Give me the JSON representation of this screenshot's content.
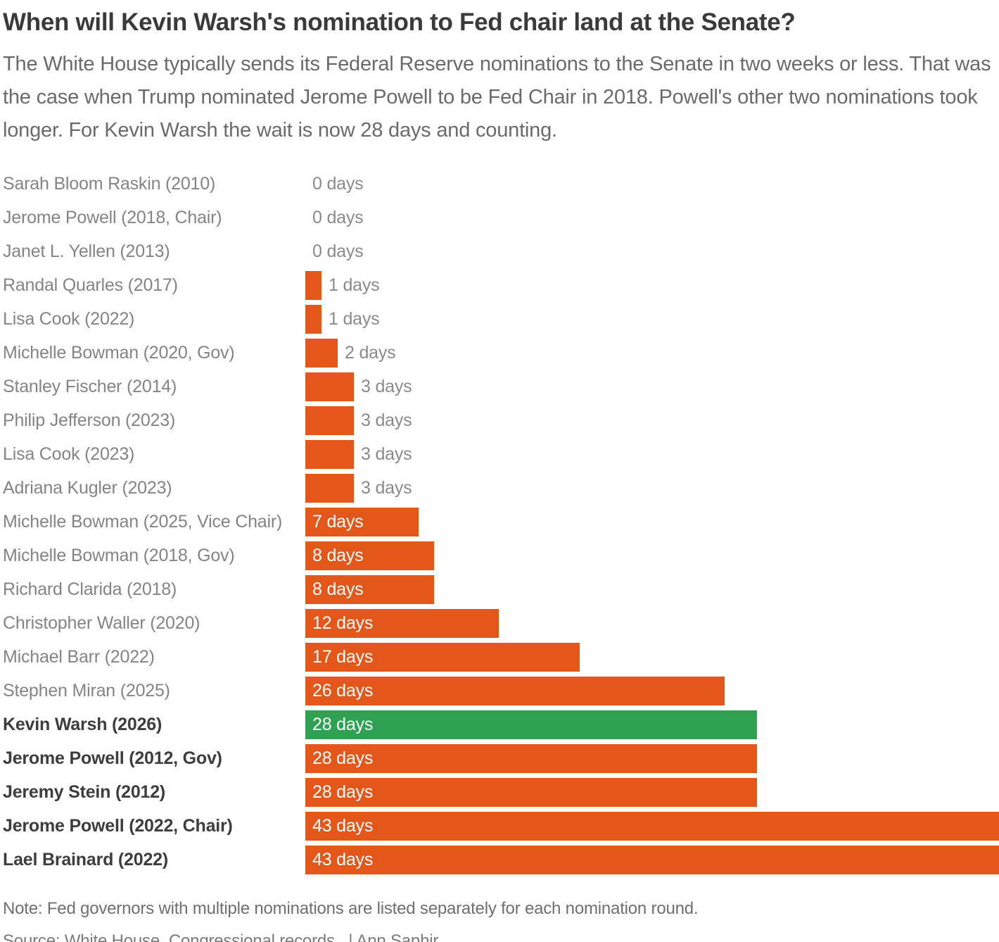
{
  "chart_data": {
    "type": "bar",
    "orientation": "horizontal",
    "title": "When will Kevin Warsh's nomination to Fed chair land at the Senate?",
    "subtitle": "The White House typically sends its Federal Reserve nominations to the Senate in two weeks or less. That was the case when Trump nominated Jerome Powell to be Fed Chair in 2018. Powell's other two nominations took longer. For Kevin Warsh the wait is now 28 days and counting.",
    "note": "Note: Fed governors with multiple nominations are listed separately for each nomination round.",
    "source": "Source: White House, Congressional records,  | Ann Saphir",
    "xlim": [
      0,
      43
    ],
    "value_suffix": " days",
    "inside_label_threshold": 7,
    "legend": "none",
    "grid": false,
    "colors": {
      "bar": "#e4571a",
      "highlight_bar": "#2fa153",
      "label": "#848484",
      "bold_label": "#3d3d3d",
      "value_outside": "#8a8a8a",
      "value_inside": "#ffffff"
    },
    "rows": [
      {
        "label": "Sarah Bloom Raskin (2010)",
        "value": 0,
        "bold": false,
        "highlight": false
      },
      {
        "label": "Jerome Powell (2018, Chair)",
        "value": 0,
        "bold": false,
        "highlight": false
      },
      {
        "label": "Janet L. Yellen (2013)",
        "value": 0,
        "bold": false,
        "highlight": false
      },
      {
        "label": "Randal Quarles (2017)",
        "value": 1,
        "bold": false,
        "highlight": false
      },
      {
        "label": "Lisa Cook (2022)",
        "value": 1,
        "bold": false,
        "highlight": false
      },
      {
        "label": "Michelle Bowman (2020, Gov)",
        "value": 2,
        "bold": false,
        "highlight": false
      },
      {
        "label": "Stanley Fischer (2014)",
        "value": 3,
        "bold": false,
        "highlight": false
      },
      {
        "label": "Philip Jefferson (2023)",
        "value": 3,
        "bold": false,
        "highlight": false
      },
      {
        "label": "Lisa Cook (2023)",
        "value": 3,
        "bold": false,
        "highlight": false
      },
      {
        "label": "Adriana Kugler (2023)",
        "value": 3,
        "bold": false,
        "highlight": false
      },
      {
        "label": "Michelle Bowman (2025, Vice Chair)",
        "value": 7,
        "bold": false,
        "highlight": false
      },
      {
        "label": "Michelle Bowman (2018, Gov)",
        "value": 8,
        "bold": false,
        "highlight": false
      },
      {
        "label": "Richard Clarida (2018)",
        "value": 8,
        "bold": false,
        "highlight": false
      },
      {
        "label": "Christopher Waller (2020)",
        "value": 12,
        "bold": false,
        "highlight": false
      },
      {
        "label": "Michael Barr (2022)",
        "value": 17,
        "bold": false,
        "highlight": false
      },
      {
        "label": "Stephen Miran (2025)",
        "value": 26,
        "bold": false,
        "highlight": false
      },
      {
        "label": "Kevin Warsh (2026)",
        "value": 28,
        "bold": true,
        "highlight": true
      },
      {
        "label": "Jerome Powell (2012, Gov)",
        "value": 28,
        "bold": true,
        "highlight": false
      },
      {
        "label": "Jeremy Stein (2012)",
        "value": 28,
        "bold": true,
        "highlight": false
      },
      {
        "label": "Jerome Powell (2022, Chair)",
        "value": 43,
        "bold": true,
        "highlight": false
      },
      {
        "label": "Lael Brainard (2022)",
        "value": 43,
        "bold": true,
        "highlight": false
      }
    ]
  }
}
